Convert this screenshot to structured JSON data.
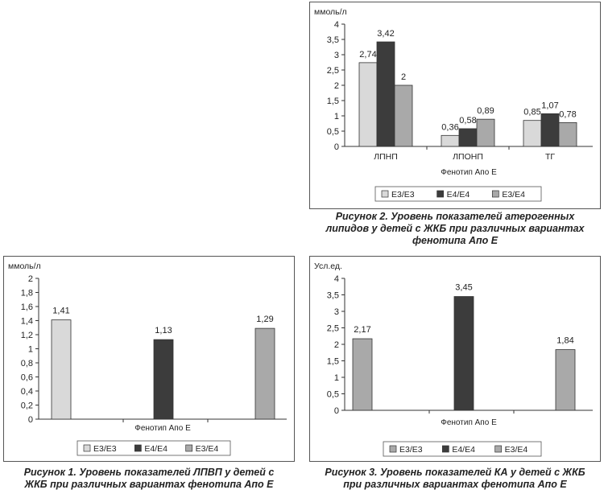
{
  "colors": {
    "e3e3": "#d9d9d9",
    "e4e4": "#3c3c3c",
    "e3e4": "#a9a9a9",
    "frame": "#555555",
    "text": "#222222"
  },
  "chart_data": [
    {
      "type": "bar",
      "id": "chart-lpvp",
      "ylabel": "ммоль/л",
      "xlabel": "Фенотип Апо Е",
      "ylim": [
        0,
        2
      ],
      "yticks": [
        "0",
        "0,2",
        "0,4",
        "0,6",
        "0,8",
        "1",
        "1,2",
        "1,4",
        "1,6",
        "1,8",
        "2"
      ],
      "categories": [
        ""
      ],
      "series": [
        {
          "name": "Е3/Е3",
          "values": [
            1.41
          ],
          "labels": [
            "1,41"
          ],
          "color": "e3e3"
        },
        {
          "name": "Е4/Е4",
          "values": [
            1.13
          ],
          "labels": [
            "1,13"
          ],
          "color": "e4e4"
        },
        {
          "name": "Е3/Е4",
          "values": [
            1.29
          ],
          "labels": [
            "1,29"
          ],
          "color": "e3e4"
        }
      ],
      "legend": "bottom",
      "grid": false,
      "caption": [
        "Рисунок 1. Уровень показателей ЛПВП у детей с",
        "ЖКБ при различных вариантах фенотипа Апо Е"
      ]
    },
    {
      "type": "bar",
      "id": "chart-atherogenic",
      "ylabel": "ммоль/л",
      "xlabel": "Фенотип Апо Е",
      "ylim": [
        0,
        4
      ],
      "yticks": [
        "0",
        "0,5",
        "1",
        "1,5",
        "2",
        "2,5",
        "3",
        "3,5",
        "4"
      ],
      "categories": [
        "ЛПНП",
        "ЛПОНП",
        "ТГ"
      ],
      "series": [
        {
          "name": "Е3/Е3",
          "values": [
            2.74,
            0.36,
            0.85
          ],
          "labels": [
            "2,74",
            "0,36",
            "0,85"
          ],
          "color": "e3e3"
        },
        {
          "name": "Е4/Е4",
          "values": [
            3.42,
            0.58,
            1.07
          ],
          "labels": [
            "3,42",
            "0,58",
            "1,07"
          ],
          "color": "e4e4"
        },
        {
          "name": "Е3/Е4",
          "values": [
            2.0,
            0.89,
            0.78
          ],
          "labels": [
            "2",
            "0,89",
            "0,78"
          ],
          "color": "e3e4"
        }
      ],
      "legend": "bottom",
      "grid": false,
      "caption": [
        "Рисунок 2. Уровень показателей атерогенных",
        "липидов у детей с ЖКБ при различных вариантах",
        "фенотипа Апо Е"
      ]
    },
    {
      "type": "bar",
      "id": "chart-ka",
      "ylabel": "Усл.ед.",
      "xlabel": "Фенотип Апо Е",
      "ylim": [
        0,
        4
      ],
      "yticks": [
        "0",
        "0,5",
        "1",
        "1,5",
        "2",
        "2,5",
        "3",
        "3,5",
        "4"
      ],
      "categories": [
        ""
      ],
      "series": [
        {
          "name": "Е3/Е3",
          "values": [
            2.17
          ],
          "labels": [
            "2,17"
          ],
          "color": "e3e4"
        },
        {
          "name": "Е4/Е4",
          "values": [
            3.45
          ],
          "labels": [
            "3,45"
          ],
          "color": "e4e4"
        },
        {
          "name": "Е3/Е4",
          "values": [
            1.84
          ],
          "labels": [
            "1,84"
          ],
          "color": "e3e4"
        }
      ],
      "legend": "bottom",
      "grid": false,
      "caption": [
        "Рисунок 3. Уровень показателей КА у детей с ЖКБ",
        "при различных вариантах фенотипа Апо Е"
      ]
    }
  ]
}
